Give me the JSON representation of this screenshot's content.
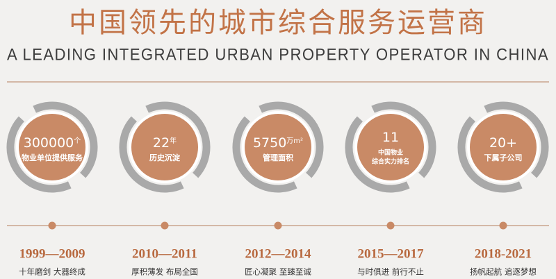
{
  "header": {
    "title": "中国领先的城市综合服务运营商",
    "subtitle": "A LEADING INTEGRATED URBAN PROPERTY OPERATOR IN CHINA"
  },
  "milestones": [
    {
      "value": "300000",
      "unit": "个",
      "desc": [
        "物业单位提供服务"
      ],
      "period": "1999—2009",
      "motto": "十年磨剑  大器终成"
    },
    {
      "value": "22",
      "unit": "年",
      "desc": [
        "历史沉淀"
      ],
      "period": "2010—2011",
      "motto": "厚积薄发  布局全国"
    },
    {
      "value": "5750",
      "unit": "万m²",
      "desc": [
        "管理面积"
      ],
      "period": "2012—2014",
      "motto": "匠心凝聚  至臻至诚"
    },
    {
      "value": "11",
      "unit": "",
      "desc": [
        "中国物业",
        "综合实力排名"
      ],
      "period": "2015—2017",
      "motto": "与时俱进  前行不止"
    },
    {
      "value": "20+",
      "unit": "",
      "desc": [
        "下属子公司"
      ],
      "period": "2018-2021",
      "motto": "扬帆起航  追逐梦想"
    }
  ]
}
